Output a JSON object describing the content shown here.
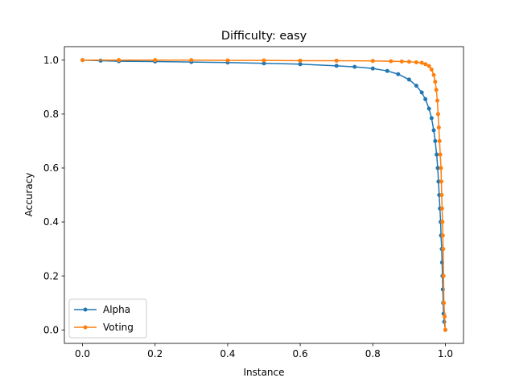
{
  "chart_data": {
    "type": "line",
    "title": "Difficulty: easy",
    "xlabel": "Instance",
    "ylabel": "Accuracy",
    "xlim": [
      -0.05,
      1.05
    ],
    "ylim": [
      -0.05,
      1.05
    ],
    "x_ticks": [
      "0.0",
      "0.2",
      "0.4",
      "0.6",
      "0.8",
      "1.0"
    ],
    "y_ticks": [
      "0.0",
      "0.2",
      "0.4",
      "0.6",
      "0.8",
      "1.0"
    ],
    "grid": false,
    "legend_position": "lower-left",
    "series": [
      {
        "name": "Alpha",
        "color": "#1f77b4",
        "marker": "circle",
        "points": [
          [
            0.0,
            1.0
          ],
          [
            0.05,
            0.998
          ],
          [
            0.1,
            0.996
          ],
          [
            0.2,
            0.995
          ],
          [
            0.3,
            0.993
          ],
          [
            0.4,
            0.991
          ],
          [
            0.5,
            0.988
          ],
          [
            0.6,
            0.985
          ],
          [
            0.7,
            0.979
          ],
          [
            0.75,
            0.975
          ],
          [
            0.8,
            0.969
          ],
          [
            0.84,
            0.96
          ],
          [
            0.87,
            0.948
          ],
          [
            0.9,
            0.928
          ],
          [
            0.92,
            0.905
          ],
          [
            0.935,
            0.88
          ],
          [
            0.945,
            0.855
          ],
          [
            0.955,
            0.82
          ],
          [
            0.962,
            0.785
          ],
          [
            0.968,
            0.74
          ],
          [
            0.972,
            0.7
          ],
          [
            0.976,
            0.65
          ],
          [
            0.979,
            0.6
          ],
          [
            0.981,
            0.55
          ],
          [
            0.983,
            0.5
          ],
          [
            0.985,
            0.45
          ],
          [
            0.987,
            0.4
          ],
          [
            0.988,
            0.35
          ],
          [
            0.99,
            0.3
          ],
          [
            0.991,
            0.25
          ],
          [
            0.992,
            0.2
          ],
          [
            0.993,
            0.15
          ],
          [
            0.994,
            0.1
          ],
          [
            0.995,
            0.06
          ],
          [
            0.997,
            0.03
          ],
          [
            1.0,
            0.0
          ]
        ]
      },
      {
        "name": "Voting",
        "color": "#ff7f0e",
        "marker": "circle",
        "points": [
          [
            0.0,
            1.0
          ],
          [
            0.1,
            1.0
          ],
          [
            0.2,
            1.0
          ],
          [
            0.3,
            1.0
          ],
          [
            0.4,
            0.999
          ],
          [
            0.5,
            0.999
          ],
          [
            0.6,
            0.998
          ],
          [
            0.7,
            0.998
          ],
          [
            0.8,
            0.997
          ],
          [
            0.85,
            0.996
          ],
          [
            0.88,
            0.995
          ],
          [
            0.9,
            0.994
          ],
          [
            0.92,
            0.992
          ],
          [
            0.935,
            0.99
          ],
          [
            0.945,
            0.985
          ],
          [
            0.955,
            0.978
          ],
          [
            0.962,
            0.965
          ],
          [
            0.968,
            0.945
          ],
          [
            0.972,
            0.92
          ],
          [
            0.975,
            0.89
          ],
          [
            0.978,
            0.85
          ],
          [
            0.98,
            0.8
          ],
          [
            0.982,
            0.75
          ],
          [
            0.984,
            0.7
          ],
          [
            0.986,
            0.65
          ],
          [
            0.988,
            0.6
          ],
          [
            0.989,
            0.55
          ],
          [
            0.99,
            0.5
          ],
          [
            0.991,
            0.45
          ],
          [
            0.992,
            0.4
          ],
          [
            0.993,
            0.35
          ],
          [
            0.994,
            0.3
          ],
          [
            0.995,
            0.2
          ],
          [
            0.996,
            0.1
          ],
          [
            0.998,
            0.05
          ],
          [
            1.0,
            0.0
          ]
        ]
      }
    ]
  }
}
